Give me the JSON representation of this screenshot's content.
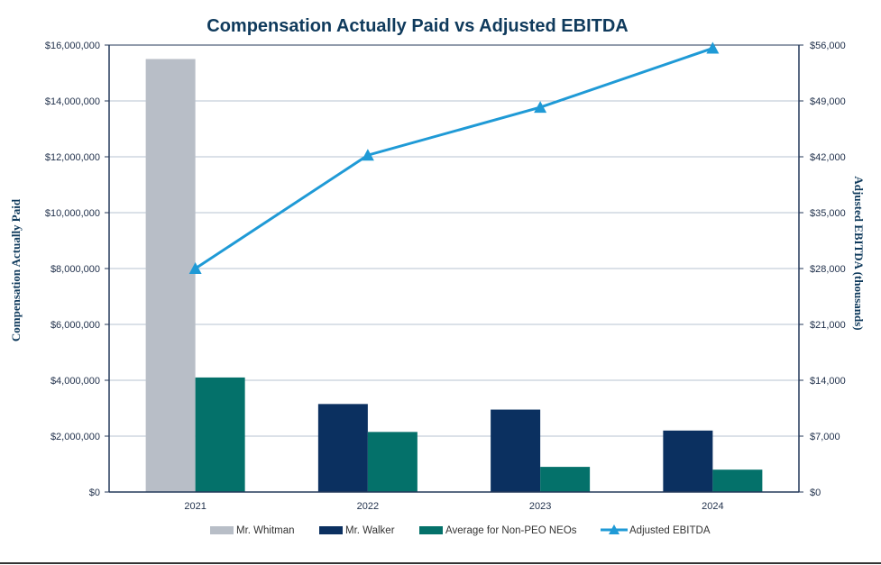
{
  "chart_data": {
    "type": "bar",
    "title": "Compensation Actually Paid vs Adjusted EBITDA",
    "ylabel": "Compensation Actually Paid",
    "y2label": "Adjusted EBITDA (thousands)",
    "xlabel": "",
    "categories": [
      "2021",
      "2022",
      "2023",
      "2024"
    ],
    "ylim": [
      0,
      16000000
    ],
    "y2lim": [
      0,
      56000
    ],
    "yticks": [
      "$0",
      "$2,000,000",
      "$4,000,000",
      "$6,000,000",
      "$8,000,000",
      "$10,000,000",
      "$12,000,000",
      "$14,000,000",
      "$16,000,000"
    ],
    "y2ticks": [
      "$0",
      "$7,000",
      "$14,000",
      "$21,000",
      "$28,000",
      "$35,000",
      "$42,000",
      "$49,000",
      "$56,000"
    ],
    "grid": true,
    "legend_position": "bottom",
    "series": [
      {
        "name": "Mr. Whitman",
        "type": "bar",
        "color": "#b8bec7",
        "values": [
          15500000,
          null,
          null,
          null
        ]
      },
      {
        "name": "Mr. Walker",
        "type": "bar",
        "color": "#0b3060",
        "values": [
          null,
          3150000,
          2950000,
          2200000
        ]
      },
      {
        "name": "Average for Non-PEO NEOs",
        "type": "bar",
        "color": "#04716a",
        "values": [
          4100000,
          2150000,
          900000,
          800000
        ]
      },
      {
        "name": "Adjusted EBITDA",
        "type": "line",
        "axis": "right",
        "color": "#1f9ad6",
        "values": [
          28000,
          42200,
          48200,
          55600
        ]
      }
    ]
  }
}
